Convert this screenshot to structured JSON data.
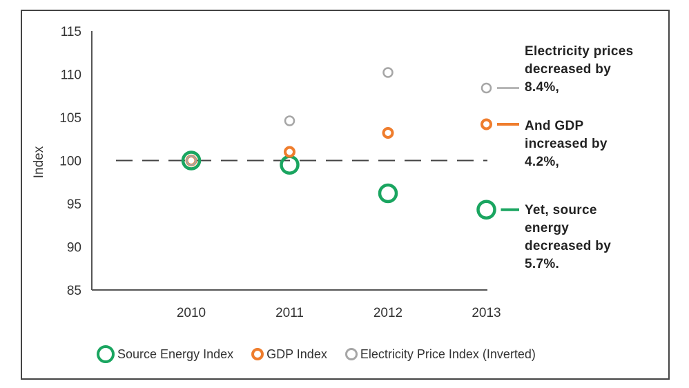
{
  "chart_data": {
    "type": "scatter",
    "ylabel": "Index",
    "xlabel": "",
    "categories": [
      "2010",
      "2011",
      "2012",
      "2013"
    ],
    "y_ticks": [
      "115",
      "110",
      "105",
      "100",
      "95",
      "90",
      "85"
    ],
    "ylim": [
      85,
      115
    ],
    "reference_line": 100,
    "series": [
      {
        "name": "Source Energy Index",
        "color": "#1aa560",
        "values": [
          100,
          99.5,
          96.2,
          94.3
        ]
      },
      {
        "name": "GDP Index",
        "color": "#ef7d2d",
        "values": [
          100,
          101,
          103.2,
          104.2
        ]
      },
      {
        "name": "Electricity Price Index (Inverted)",
        "color": "#a6a6a6",
        "values": [
          100,
          104.6,
          110.2,
          108.4
        ]
      }
    ],
    "annotations": [
      {
        "lines": [
          "Electricity prices",
          "decreased by",
          "8.4%,"
        ],
        "color": "#a6a6a6"
      },
      {
        "lines": [
          "And GDP",
          "increased by",
          "4.2%,"
        ],
        "color": "#ef7d2d"
      },
      {
        "lines": [
          "Yet, source",
          "energy",
          "decreased by",
          "5.7%."
        ],
        "color": "#1aa560"
      }
    ]
  }
}
